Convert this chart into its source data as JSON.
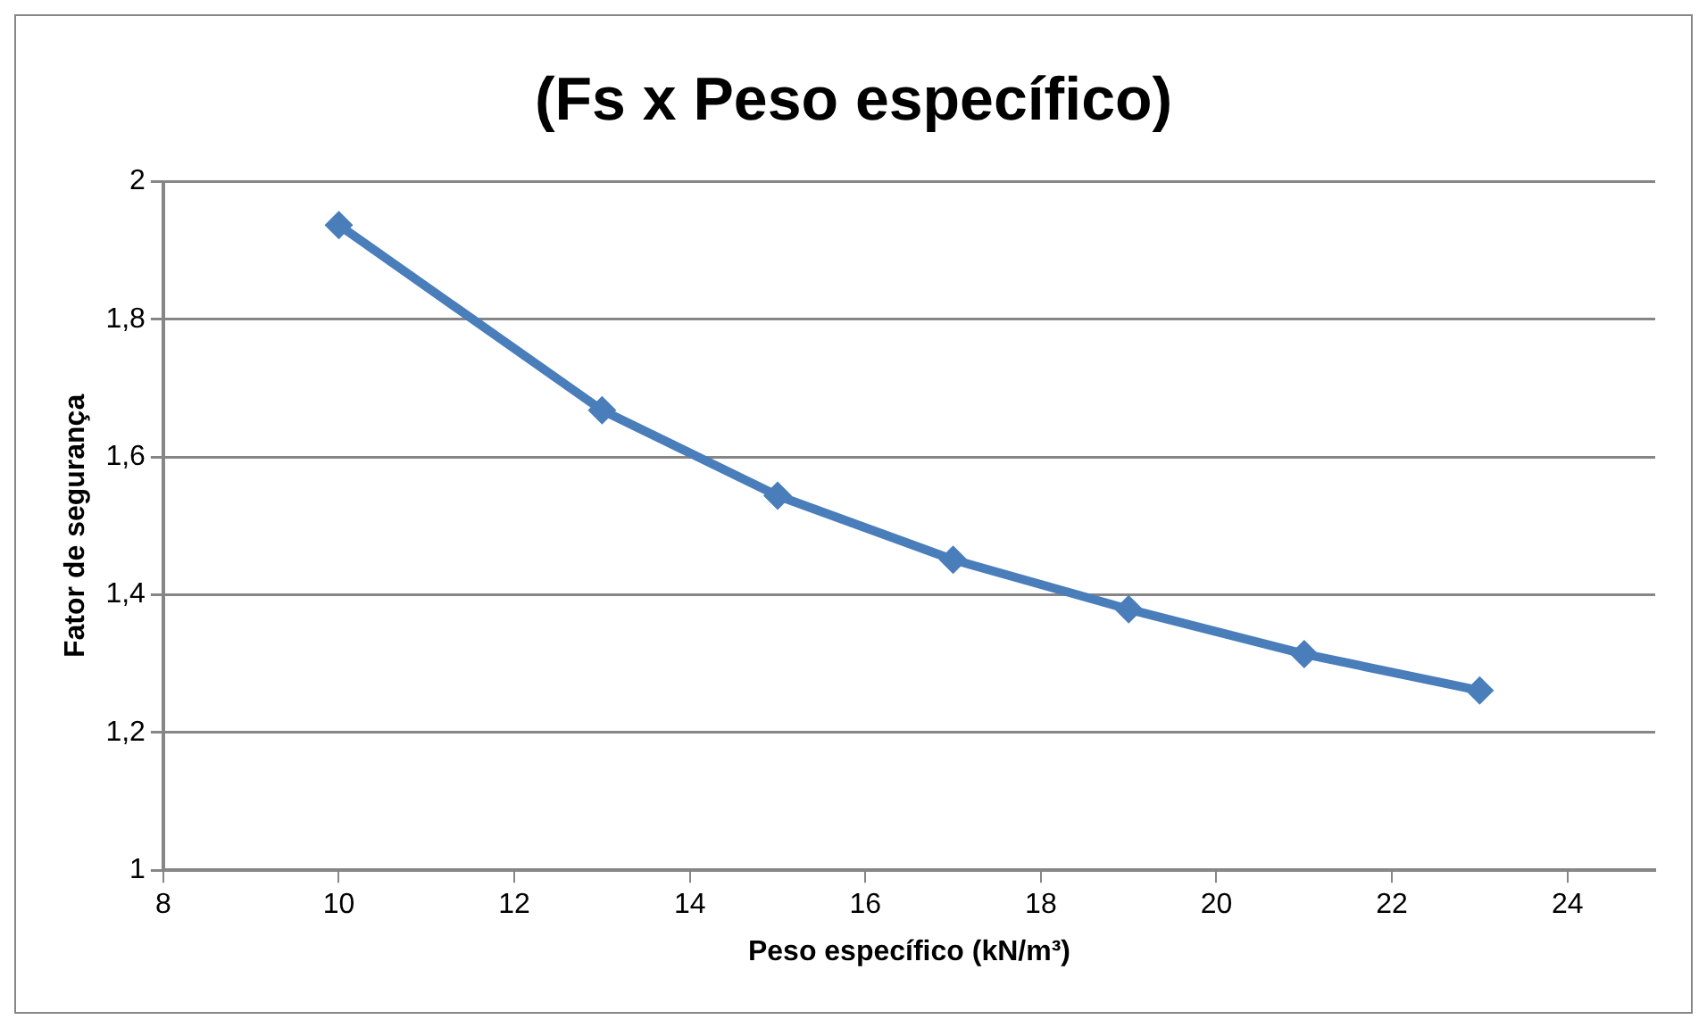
{
  "chart_data": {
    "type": "line",
    "title": "(Fs x Peso específico)",
    "xlabel": "Peso específico (kN/m³)",
    "ylabel": "Fator de segurança",
    "x": [
      10,
      13,
      15,
      17,
      19,
      21,
      23
    ],
    "series": [
      {
        "color": "#4a7ebb",
        "values": [
          1.937,
          1.668,
          1.544,
          1.451,
          1.379,
          1.314,
          1.261
        ]
      }
    ],
    "xlim": [
      8,
      25
    ],
    "xticks": [
      8,
      10,
      12,
      14,
      16,
      18,
      20,
      22,
      24
    ],
    "ylim": [
      1,
      2
    ],
    "yticks": [
      {
        "value": 1,
        "label": "1"
      },
      {
        "value": 1.2,
        "label": "1,2"
      },
      {
        "value": 1.4,
        "label": "1,4"
      },
      {
        "value": 1.6,
        "label": "1,6"
      },
      {
        "value": 1.8,
        "label": "1,8"
      },
      {
        "value": 2,
        "label": "2"
      }
    ],
    "grid": "y",
    "marker": "diamond",
    "line_style": "solid",
    "legend": false
  }
}
